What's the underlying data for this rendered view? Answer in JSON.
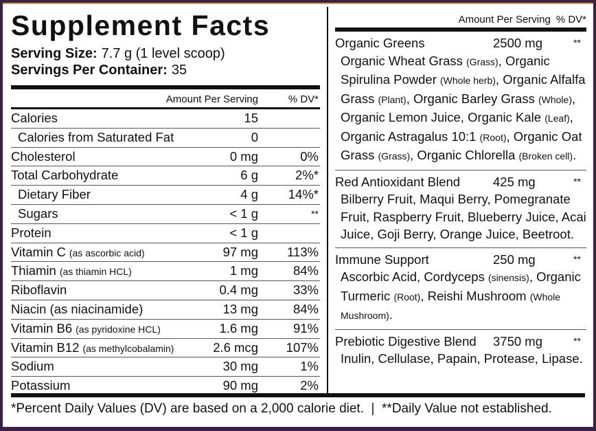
{
  "title": "Supplement Facts",
  "serving_size": {
    "label": "Serving Size:",
    "value": "7.7 g (1 level scoop)"
  },
  "servings_per_container": {
    "label": "Servings Per Container:",
    "value": "35"
  },
  "left_header": {
    "amount": "Amount Per Serving",
    "dv": "% DV*"
  },
  "rows": [
    {
      "name": "Calories",
      "amount": "15",
      "dv": "",
      "indent": false
    },
    {
      "name": "Calories from Saturated Fat",
      "amount": "0",
      "dv": "",
      "indent": true
    },
    {
      "name": "Cholesterol",
      "amount": "0 mg",
      "dv": "0%",
      "indent": false
    },
    {
      "name": "Total Carbohydrate",
      "amount": "6 g",
      "dv": "2%*",
      "indent": false
    },
    {
      "name": "Dietary Fiber",
      "amount": "4 g",
      "dv": "14%*",
      "indent": true
    },
    {
      "name": "Sugars",
      "amount": "< 1 g",
      "dv": "**",
      "indent": true
    },
    {
      "name": "Protein",
      "amount": "< 1 g",
      "dv": "",
      "indent": false
    },
    {
      "name": "Vitamin C",
      "note": "(as ascorbic acid)",
      "amount": "97 mg",
      "dv": "113%",
      "indent": false
    },
    {
      "name": "Thiamin",
      "note": "(as thiamin HCL)",
      "amount": "1 mg",
      "dv": "84%",
      "indent": false
    },
    {
      "name": "Riboflavin",
      "amount": "0.4 mg",
      "dv": "33%",
      "indent": false
    },
    {
      "name": "Niacin (as niacinamide)",
      "amount": "13 mg",
      "dv": "84%",
      "indent": false
    },
    {
      "name": "Vitamin B6",
      "note": "(as pyridoxine HCL)",
      "amount": "1.6 mg",
      "dv": "91%",
      "indent": false
    },
    {
      "name": "Vitamin B12",
      "note": "(as methylcobalamin)",
      "amount": "2.6 mcg",
      "dv": "107%",
      "indent": false
    },
    {
      "name": "Sodium",
      "amount": "30 mg",
      "dv": "1%",
      "indent": false
    },
    {
      "name": "Potassium",
      "amount": "90 mg",
      "dv": "2%",
      "indent": false
    }
  ],
  "right_header": {
    "amount": "Amount Per Serving",
    "dv": "% DV*"
  },
  "blends": [
    {
      "name": "Organic Greens",
      "amount": "2500 mg",
      "dv": "**",
      "ingredients": [
        {
          "text": "Organic Wheat Grass ",
          "small": false
        },
        {
          "text": "(Grass)",
          "small": true
        },
        {
          "text": ", Organic Spirulina Powder ",
          "small": false
        },
        {
          "text": "(Whole herb)",
          "small": true
        },
        {
          "text": ", Organic Alfalfa Grass ",
          "small": false
        },
        {
          "text": "(Plant)",
          "small": true
        },
        {
          "text": ", Organic Barley Grass ",
          "small": false
        },
        {
          "text": "(Whole)",
          "small": true
        },
        {
          "text": ", Organic Lemon Juice, Organic Kale ",
          "small": false
        },
        {
          "text": "(Leaf)",
          "small": true
        },
        {
          "text": ", Organic Astragalus 10:1 ",
          "small": false
        },
        {
          "text": "(Root)",
          "small": true
        },
        {
          "text": ", Organic Oat Grass ",
          "small": false
        },
        {
          "text": "(Grass)",
          "small": true
        },
        {
          "text": ", Organic Chlorella ",
          "small": false
        },
        {
          "text": "(Broken cell)",
          "small": true
        },
        {
          "text": ".",
          "small": false
        }
      ]
    },
    {
      "name": "Red Antioxidant Blend",
      "amount": "425 mg",
      "dv": "**",
      "ingredients": [
        {
          "text": "Bilberry Fruit, Maqui Berry, Pomegranate Fruit, Raspberry Fruit, Blueberry Juice, Acai Juice, Goji Berry, Orange Juice, Beetroot.",
          "small": false
        }
      ]
    },
    {
      "name": "Immune Support",
      "amount": "250 mg",
      "dv": "**",
      "ingredients": [
        {
          "text": "Ascorbic Acid, Cordyceps ",
          "small": false
        },
        {
          "text": "(sinensis)",
          "small": true
        },
        {
          "text": ", Organic Turmeric ",
          "small": false
        },
        {
          "text": "(Root)",
          "small": true
        },
        {
          "text": ", Reishi Mushroom ",
          "small": false
        },
        {
          "text": "(Whole Mushroom)",
          "small": true
        },
        {
          "text": ".",
          "small": false
        }
      ]
    },
    {
      "name": "Prebiotic Digestive Blend",
      "amount": "3750 mg",
      "dv": "**",
      "ingredients": [
        {
          "text": "Inulin, Cellulase, Papain, Protease, Lipase.",
          "small": false
        }
      ]
    }
  ],
  "footer": "*Percent Daily Values (DV) are based on a 2,000 calorie diet.  |  **Daily Value not established."
}
